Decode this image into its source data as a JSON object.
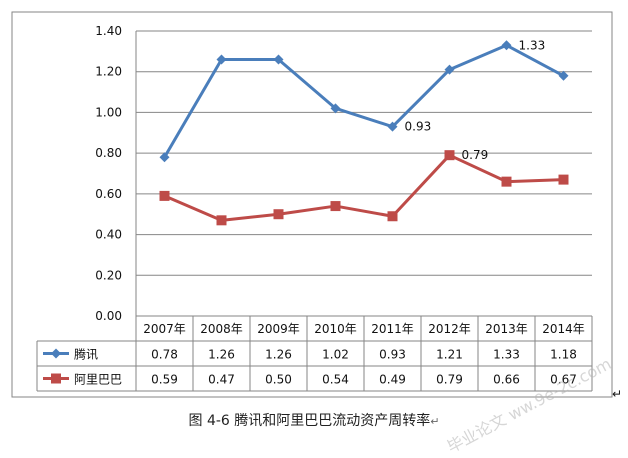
{
  "chart_data": {
    "type": "line",
    "categories": [
      "2007年",
      "2008年",
      "2009年",
      "2010年",
      "2011年",
      "2012年",
      "2013年",
      "2014年"
    ],
    "series": [
      {
        "name": "腾讯",
        "color": "#4a7ebb",
        "marker": "diamond",
        "values": [
          0.78,
          1.26,
          1.26,
          1.02,
          0.93,
          1.21,
          1.33,
          1.18
        ],
        "table_values": [
          "0.78",
          "1.26",
          "1.26",
          "1.02",
          "0.93",
          "1.21",
          "1.33",
          "1.18"
        ]
      },
      {
        "name": "阿里巴巴",
        "color": "#be4b48",
        "marker": "square",
        "values": [
          0.59,
          0.47,
          0.5,
          0.54,
          0.49,
          0.79,
          0.66,
          0.67
        ],
        "table_values": [
          "0.59",
          "0.47",
          "0.50",
          "0.54",
          "0.49",
          "0.79",
          "0.66",
          "0.67"
        ]
      }
    ],
    "annotations": [
      {
        "series": 0,
        "index": 4,
        "text": "0.93"
      },
      {
        "series": 0,
        "index": 6,
        "text": "1.33"
      },
      {
        "series": 1,
        "index": 5,
        "text": "0.79"
      }
    ],
    "ylim": [
      0,
      1.4
    ],
    "yticks": [
      "0.00",
      "0.20",
      "0.40",
      "0.60",
      "0.80",
      "1.00",
      "1.20",
      "1.40"
    ],
    "grid": true,
    "legend": "bottom-table"
  },
  "caption": "图 4-6 腾讯和阿里巴巴流动资产周转率",
  "caption_mark": "↵",
  "side_mark": "↵",
  "watermark": "毕业论文 ww.9e-2c.com"
}
